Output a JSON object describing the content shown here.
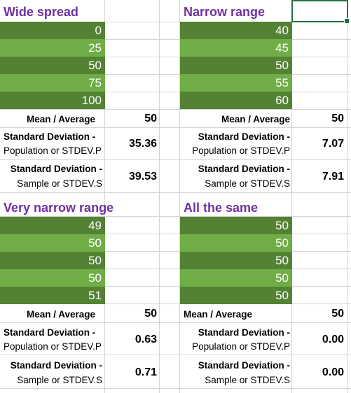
{
  "sections": {
    "wide": {
      "title": "Wide spread",
      "values": [
        "0",
        "25",
        "50",
        "75",
        "100"
      ],
      "mean_label": "Mean / Average",
      "mean": "50",
      "stdevp_label_1": "Standard Deviation -",
      "stdevp_label_2": "Population or STDEV.P",
      "stdevp": "35.36",
      "stdevs_label_1": "Standard Deviation -",
      "stdevs_label_2": "Sample or STDEV.S",
      "stdevs": "39.53"
    },
    "narrow": {
      "title": "Narrow range",
      "values": [
        "40",
        "45",
        "50",
        "55",
        "60"
      ],
      "mean_label": "Mean / Average",
      "mean": "50",
      "stdevp_label_1": "Standard Deviation -",
      "stdevp_label_2": "Population or STDEV.P",
      "stdevp": "7.07",
      "stdevs_label_1": "Standard Deviation -",
      "stdevs_label_2": "Sample or STDEV.S",
      "stdevs": "7.91"
    },
    "very_narrow": {
      "title": "Very narrow range",
      "values": [
        "49",
        "50",
        "50",
        "50",
        "51"
      ],
      "mean_label": "Mean / Average",
      "mean": "50",
      "stdevp_label_1": "Standard Deviation -",
      "stdevp_label_2": "Population or STDEV.P",
      "stdevp": "0.63",
      "stdevs_label_1": "Standard Deviation -",
      "stdevs_label_2": "Sample or STDEV.S",
      "stdevs": "0.71"
    },
    "same": {
      "title": "All the same",
      "values": [
        "50",
        "50",
        "50",
        "50",
        "50"
      ],
      "mean_label": "Mean / Average",
      "mean": "50",
      "stdevp_label_1": "Standard Deviation -",
      "stdevp_label_2": "Population or STDEV.P",
      "stdevp": "0.00",
      "stdevs_label_1": "Standard Deviation -",
      "stdevs_label_2": "Sample or STDEV.S",
      "stdevs": "0.00"
    }
  },
  "colors": {
    "title": "#7030a0",
    "dark_fill": "#548235",
    "light_fill": "#70ad47",
    "selection": "#217346"
  }
}
